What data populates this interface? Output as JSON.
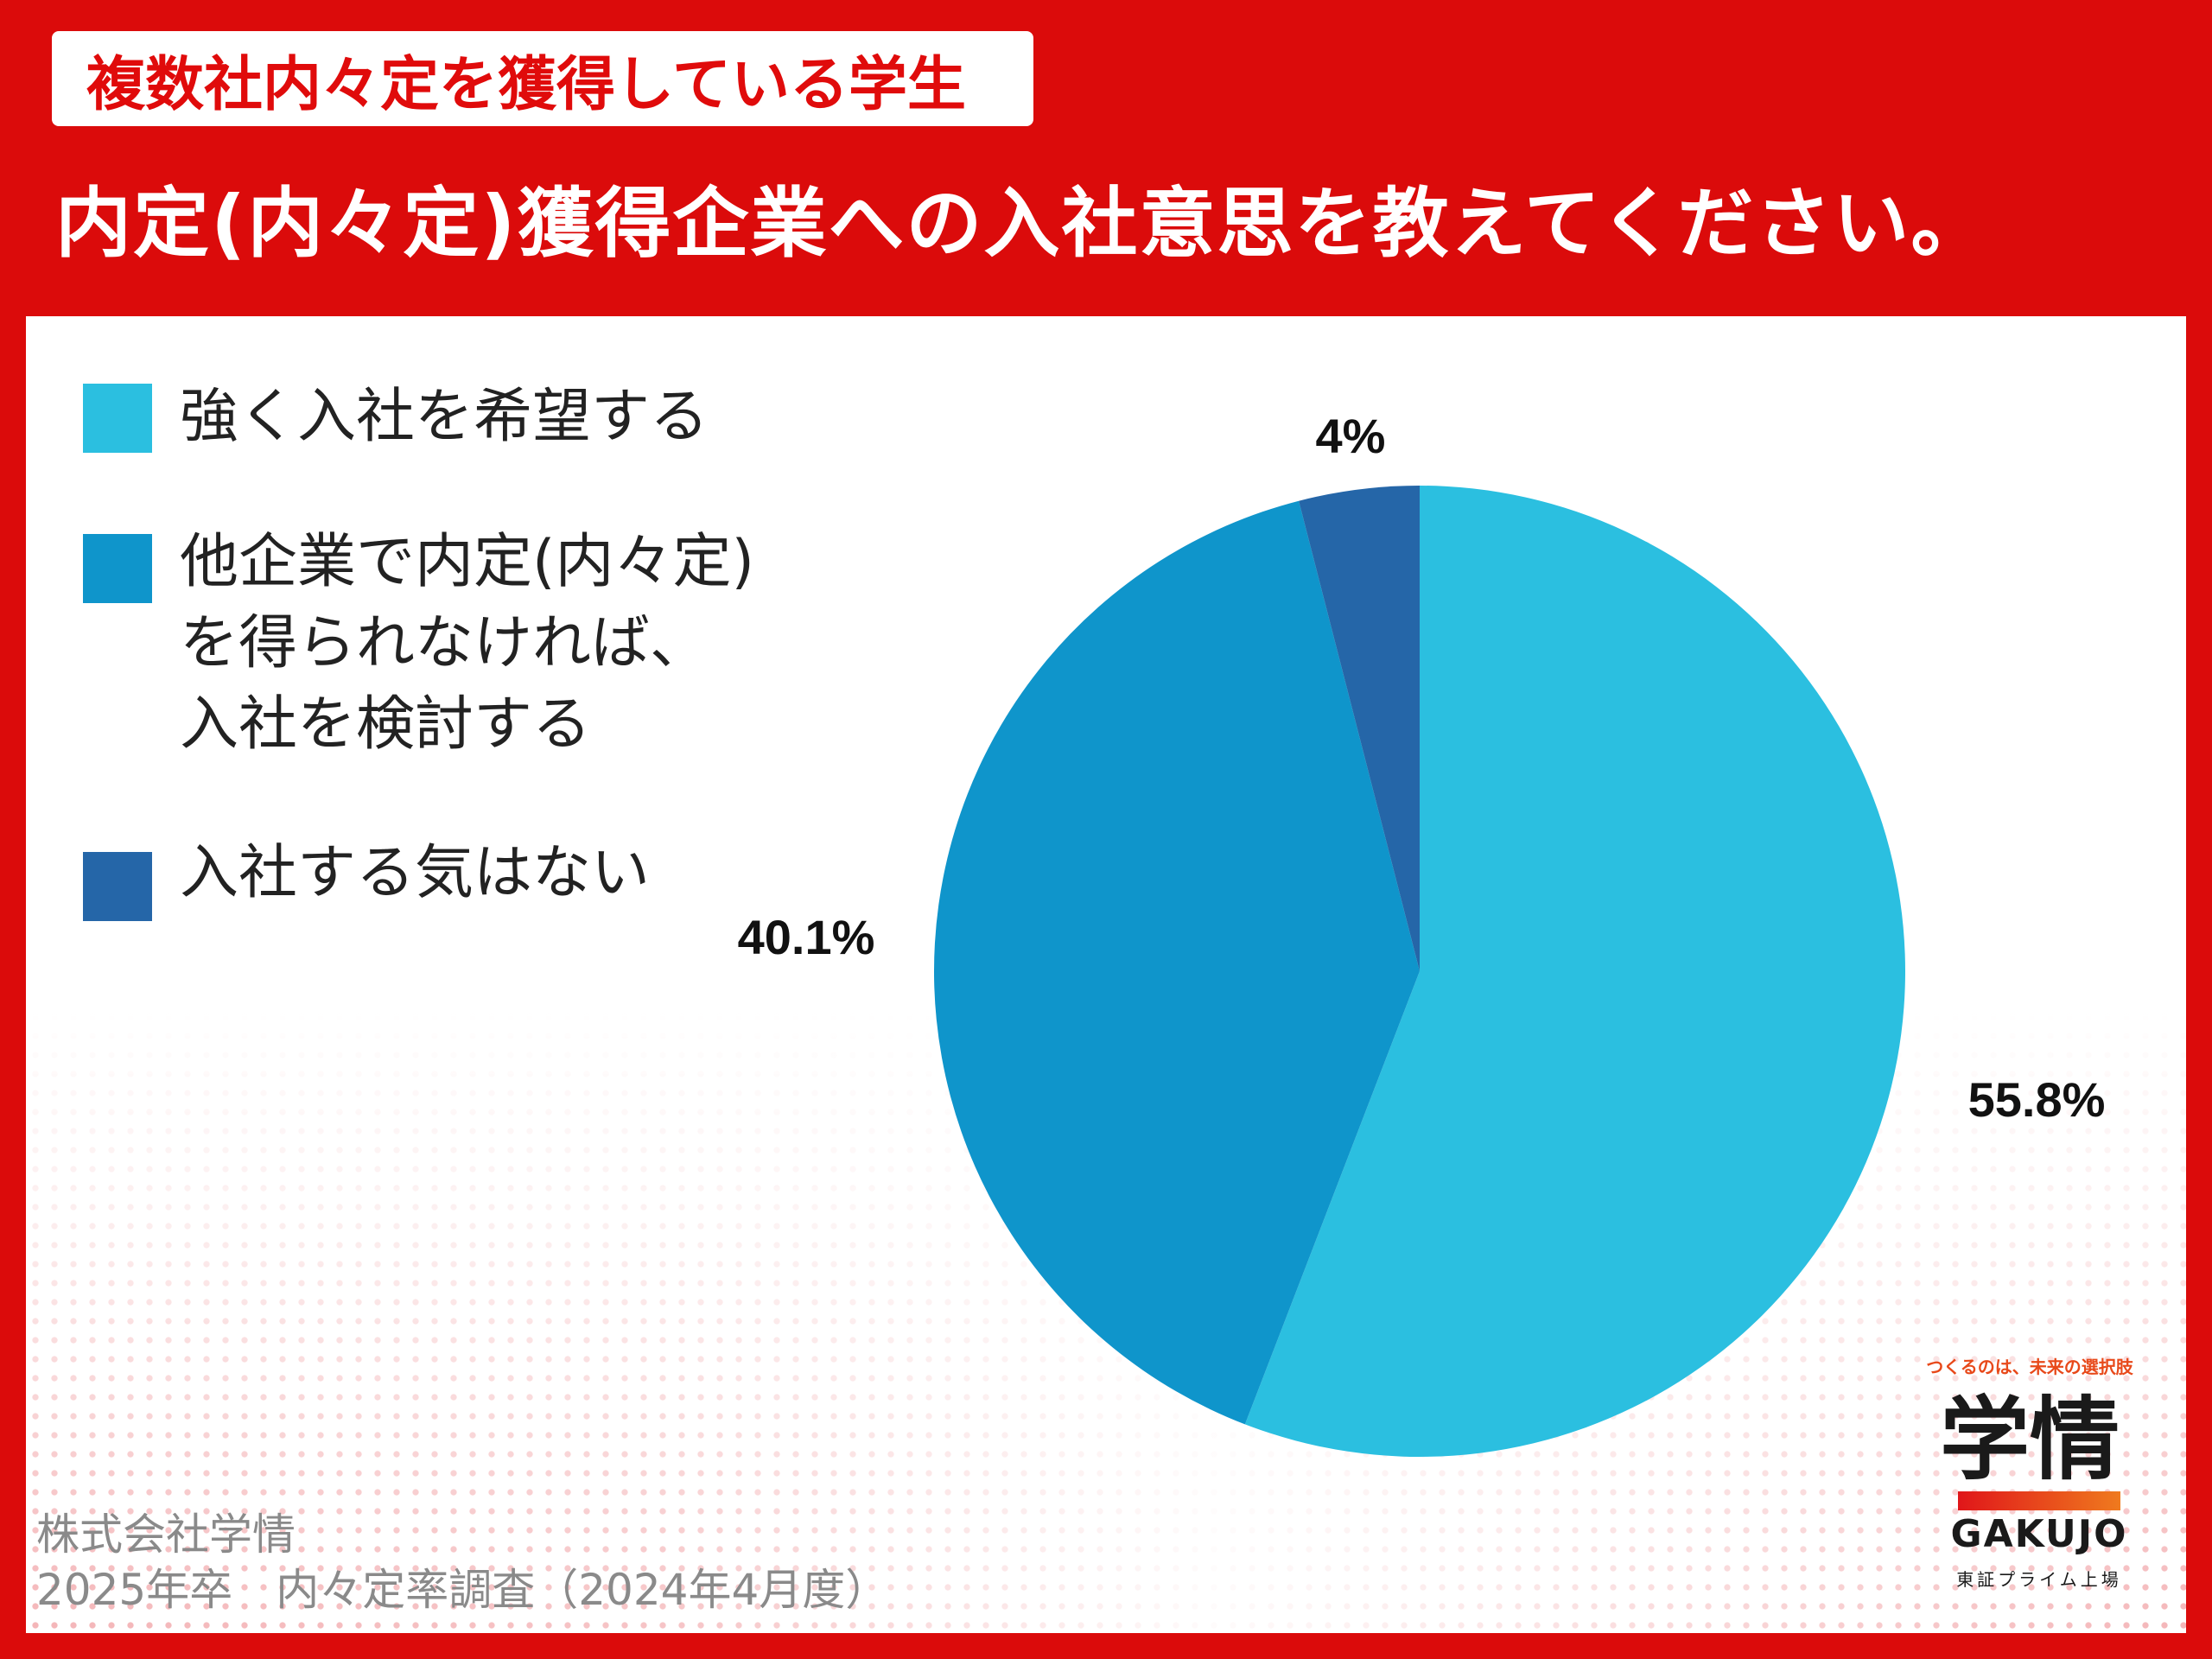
{
  "header": {
    "tag": "複数社内々定を獲得している学生",
    "title": "内定(内々定)獲得企業への入社意思を教えてください。"
  },
  "chart_data": {
    "type": "pie",
    "categories": [
      "強く入社を希望する",
      "他企業で内定(内々定)\nを得られなければ、\n入社を検討する",
      "入社する気はない"
    ],
    "values": [
      55.8,
      40.1,
      4
    ],
    "value_labels": [
      "55.8%",
      "40.1%",
      "4%"
    ],
    "colors": [
      "#2bbfe0",
      "#0f95cb",
      "#2566a8"
    ],
    "start_angle": "12 o'clock",
    "direction": "clockwise",
    "legend_position": "left"
  },
  "footer": {
    "company": "株式会社学情",
    "survey": "2025年卒　内々定率調査（2024年4月度）"
  },
  "logo": {
    "tagline": "つくるのは、未来の選択肢",
    "mark": "学情",
    "name": "GAKUJO",
    "sub": "東証プライム上場"
  }
}
